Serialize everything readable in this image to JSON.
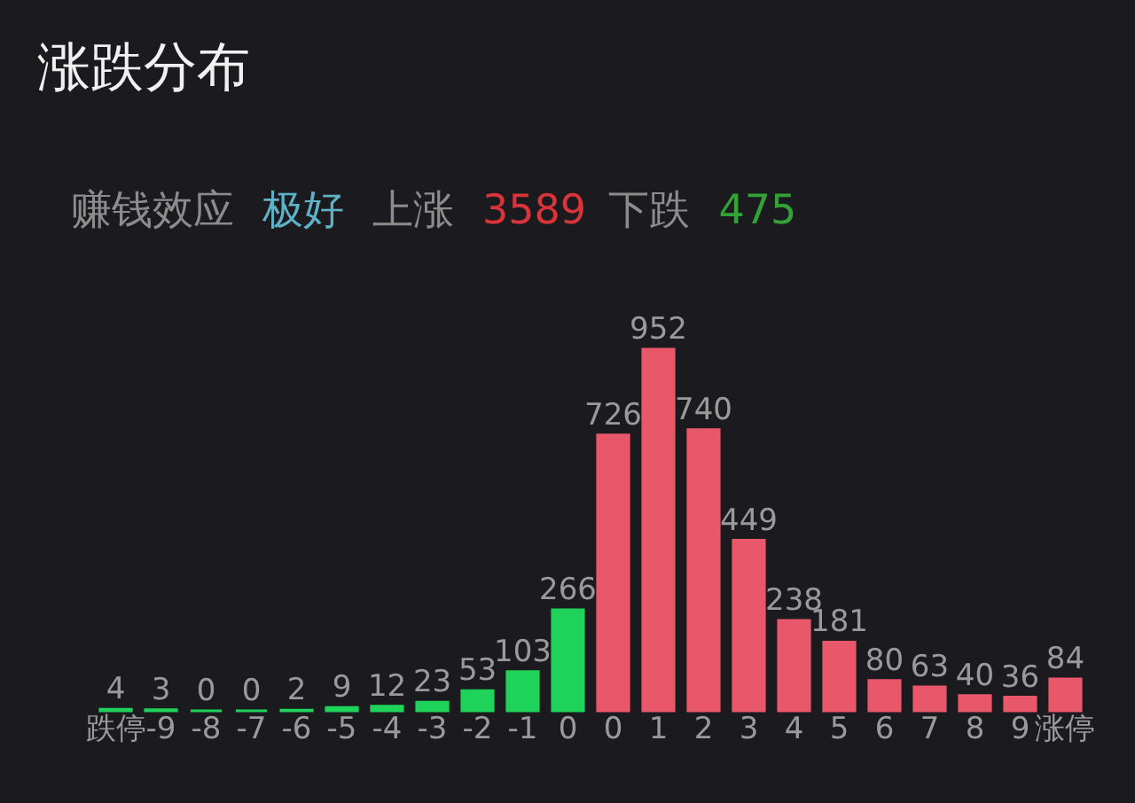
{
  "chart_data": {
    "type": "bar",
    "title": "涨跌分布",
    "subtitle": "赚钱效应 极好 上涨 3589 下跌 475",
    "categories": [
      "跌停",
      "-9",
      "-8",
      "-7",
      "-6",
      "-5",
      "-4",
      "-3",
      "-2",
      "-1",
      "0",
      "0",
      "1",
      "2",
      "3",
      "4",
      "5",
      "6",
      "7",
      "8",
      "9",
      "涨停"
    ],
    "values": [
      4,
      3,
      0,
      0,
      2,
      9,
      12,
      23,
      53,
      103,
      266,
      726,
      952,
      740,
      449,
      238,
      181,
      80,
      63,
      40,
      36,
      84
    ],
    "colors": [
      "#1fd35a",
      "#1fd35a",
      "#1fd35a",
      "#1fd35a",
      "#1fd35a",
      "#1fd35a",
      "#1fd35a",
      "#1fd35a",
      "#1fd35a",
      "#1fd35a",
      "#1fd35a",
      "#e9586a",
      "#e9586a",
      "#e9586a",
      "#e9586a",
      "#e9586a",
      "#e9586a",
      "#e9586a",
      "#e9586a",
      "#e9586a",
      "#e9586a",
      "#e9586a"
    ],
    "data_labels": true,
    "tick_labels": "x"
  }
}
